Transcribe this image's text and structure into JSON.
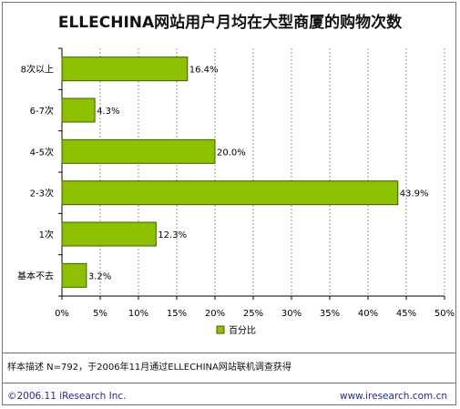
{
  "colors": {
    "bar_fill": "#8cc000",
    "bar_stroke": "#3f5f00",
    "grid": "#9a9a9a",
    "axis": "#000000",
    "footer_text": "#2a2a8a"
  },
  "chart_data": {
    "type": "bar",
    "orientation": "horizontal",
    "title": "ELLECHINA网站用户月均在大型商厦的购物次数",
    "categories": [
      "8次以上",
      "6-7次",
      "4-5次",
      "2-3次",
      "1次",
      "基本不去"
    ],
    "values": [
      16.4,
      4.3,
      20.0,
      43.9,
      12.3,
      3.2
    ],
    "value_labels": [
      "16.4%",
      "4.3%",
      "20.0%",
      "43.9%",
      "12.3%",
      "3.2%"
    ],
    "x_ticks": [
      "0%",
      "5%",
      "10%",
      "15%",
      "20%",
      "25%",
      "30%",
      "35%",
      "40%",
      "45%",
      "50%"
    ],
    "xlim": [
      0,
      50
    ],
    "grid": true,
    "legend": "bottom-center",
    "series_name": "百分比"
  },
  "note": "样本描述 N=792，于2006年11月通过ELLECHINA网站联机调查获得",
  "footer": {
    "left": "©2006.11 iResearch Inc.",
    "right": "www.iresearch.com.cn"
  }
}
